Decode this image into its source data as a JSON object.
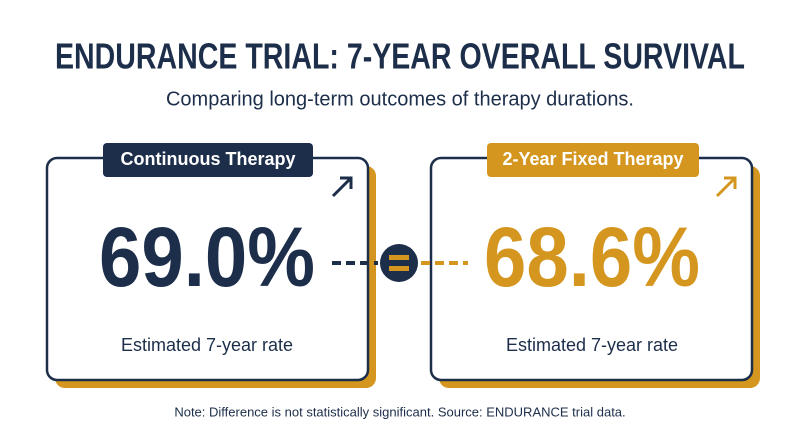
{
  "header": {
    "title": "ENDURANCE TRIAL: 7-YEAR OVERALL SURVIVAL",
    "subtitle": "Comparing long-term outcomes of therapy durations."
  },
  "cards": [
    {
      "label": "Continuous Therapy",
      "value": "69.0%",
      "caption": "Estimated 7-year rate"
    },
    {
      "label": "2-Year Fixed Therapy",
      "value": "68.6%",
      "caption": "Estimated 7-year rate"
    }
  ],
  "note": "Note: Difference is not statistically significant. Source: ENDURANCE trial data."
}
